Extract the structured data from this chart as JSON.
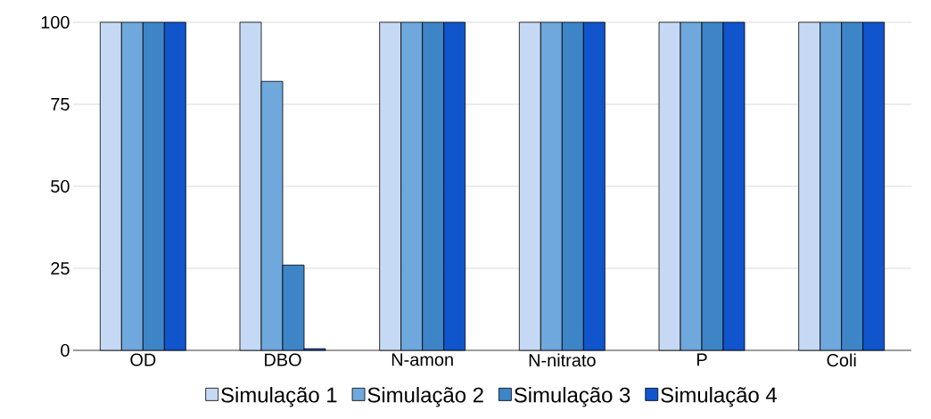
{
  "chart_data": {
    "type": "bar",
    "categories": [
      "OD",
      "DBO",
      "N-amon",
      "N-nitrato",
      "P",
      "Coli"
    ],
    "series": [
      {
        "name": "Simulação 1",
        "color": "#c6d9f4",
        "values": [
          100,
          100,
          100,
          100,
          100,
          100
        ]
      },
      {
        "name": "Simulação 2",
        "color": "#6fa8dc",
        "values": [
          100,
          82,
          100,
          100,
          100,
          100
        ]
      },
      {
        "name": "Simulação 3",
        "color": "#3d85c6",
        "values": [
          100,
          26,
          100,
          100,
          100,
          100
        ]
      },
      {
        "name": "Simulação 4",
        "color": "#1155cc",
        "values": [
          100,
          0.5,
          100,
          100,
          100,
          100
        ]
      }
    ],
    "ylim": [
      0,
      100
    ],
    "yticks": [
      0,
      25,
      50,
      75,
      100
    ],
    "grid": "y",
    "legend": "bottom"
  }
}
